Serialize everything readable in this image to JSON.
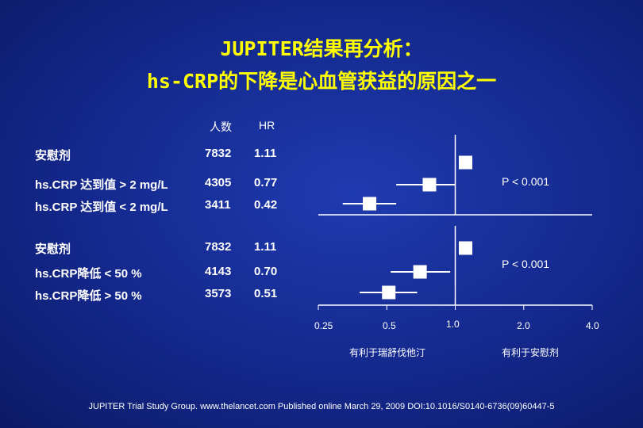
{
  "title_line1": "JUPITER结果再分析：",
  "title_line2": "hs-CRP的下降是心血管获益的原因之一",
  "header": {
    "n": "人数",
    "hr": "HR"
  },
  "chart_data": {
    "type": "forest",
    "x_scale": "log",
    "xlim": [
      0.25,
      4.0
    ],
    "reference_line": 1.0,
    "x_ticks": [
      "0.25",
      "0.5",
      "1.0",
      "2.0",
      "4.0"
    ],
    "x_tick_values": [
      0.25,
      0.5,
      1.0,
      2.0,
      4.0
    ],
    "favors_left": "有利于瑞舒伐他汀",
    "favors_right": "有利于安慰剂",
    "groups": [
      {
        "p_value": "P < 0.001",
        "rows": [
          {
            "label": "安慰剂",
            "n": "7832",
            "hr_text": "1.11",
            "hr": 1.11,
            "ci": null
          },
          {
            "label": "hs.CRP 达到值 > 2 mg/L",
            "n": "4305",
            "hr_text": "0.77",
            "hr": 0.77,
            "ci": [
              0.55,
              1.0
            ]
          },
          {
            "label": "hs.CRP 达到值 < 2 mg/L",
            "n": "3411",
            "hr_text": "0.42",
            "hr": 0.42,
            "ci": [
              0.32,
              0.55
            ]
          }
        ]
      },
      {
        "p_value": "P < 0.001",
        "rows": [
          {
            "label": "安慰剂",
            "n": "7832",
            "hr_text": "1.11",
            "hr": 1.11,
            "ci": null
          },
          {
            "label": "hs.CRP降低 < 50 %",
            "n": "4143",
            "hr_text": "0.70",
            "hr": 0.7,
            "ci": [
              0.52,
              0.95
            ]
          },
          {
            "label": "hs.CRP降低 > 50 %",
            "n": "3573",
            "hr_text": "0.51",
            "hr": 0.51,
            "ci": [
              0.38,
              0.68
            ]
          }
        ]
      }
    ]
  },
  "citation": "JUPITER Trial Study Group. www.thelancet.com Published online March 29, 2009 DOI:10.1016/S0140-6736(09)60447-5",
  "colors": {
    "title": "#ffff00",
    "text": "#ffffff",
    "background": "#14288c"
  }
}
